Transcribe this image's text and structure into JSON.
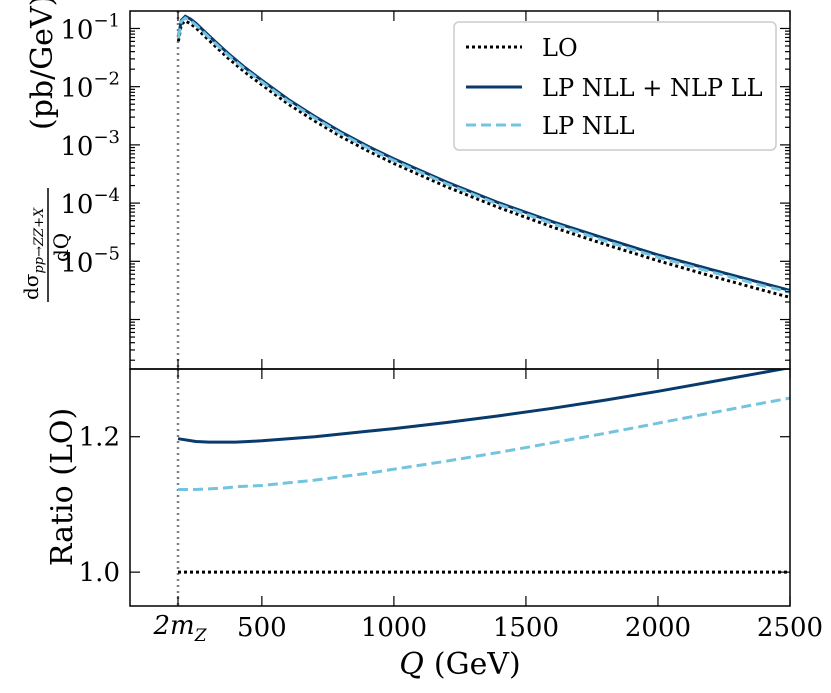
{
  "chart_data": {
    "type": "line",
    "x_unit": "GeV",
    "threshold_marker": {
      "x": 182.4,
      "label_main": "2m",
      "label_sub": "Z"
    },
    "x_ticks": [
      500,
      1000,
      1500,
      2000,
      2500
    ],
    "xlim": [
      0,
      2500
    ],
    "xlabel": {
      "var": "Q",
      "unit": "(GeV)"
    },
    "legend": {
      "position": "top-right",
      "entries": [
        "LO",
        "LP NLL + NLP LL",
        "LP NLL"
      ]
    },
    "colors": {
      "LO": "#000000",
      "LP NLL + NLP LL": "#083a6b",
      "LP NLL": "#74c4e0",
      "threshold": "#808080"
    },
    "top_panel": {
      "yscale": "log",
      "ylim_log10": [
        -6.85,
        -0.7
      ],
      "y_ticks": [
        {
          "base": "10",
          "exp": "−1",
          "log10": -1
        },
        {
          "base": "10",
          "exp": "−2",
          "log10": -2
        },
        {
          "base": "10",
          "exp": "−3",
          "log10": -3
        },
        {
          "base": "10",
          "exp": "−4",
          "log10": -4
        },
        {
          "base": "10",
          "exp": "−5",
          "log10": -5
        }
      ],
      "ylabel_frac_num": "dσ",
      "ylabel_frac_sub": "pp→ZZ+X",
      "ylabel_frac_den": "dQ",
      "ylabel_unit": "(pb/GeV)",
      "x": [
        184,
        195,
        210,
        230,
        250,
        280,
        320,
        370,
        430,
        500,
        600,
        700,
        800,
        900,
        1000,
        1200,
        1400,
        1600,
        1800,
        2000,
        2200,
        2400,
        2500
      ],
      "series": [
        {
          "name": "LO",
          "log10_values": [
            -1.22,
            -0.93,
            -0.87,
            -0.92,
            -0.99,
            -1.12,
            -1.29,
            -1.5,
            -1.73,
            -1.97,
            -2.3,
            -2.59,
            -2.86,
            -3.1,
            -3.32,
            -3.72,
            -4.08,
            -4.41,
            -4.71,
            -4.99,
            -5.25,
            -5.5,
            -5.62
          ]
        },
        {
          "name": "LP NLL + NLP LL",
          "log10_values": [
            -1.14,
            -0.86,
            -0.79,
            -0.84,
            -0.91,
            -1.04,
            -1.21,
            -1.42,
            -1.65,
            -1.89,
            -2.22,
            -2.51,
            -2.78,
            -3.02,
            -3.24,
            -3.64,
            -4.0,
            -4.32,
            -4.61,
            -4.89,
            -5.14,
            -5.38,
            -5.5
          ]
        },
        {
          "name": "LP NLL",
          "log10_values": [
            -1.17,
            -0.88,
            -0.82,
            -0.87,
            -0.94,
            -1.07,
            -1.24,
            -1.45,
            -1.68,
            -1.92,
            -2.25,
            -2.54,
            -2.81,
            -3.05,
            -3.27,
            -3.67,
            -4.03,
            -4.35,
            -4.65,
            -4.93,
            -5.18,
            -5.42,
            -5.53
          ]
        }
      ]
    },
    "bottom_panel": {
      "ylabel": "Ratio (LO)",
      "ylim": [
        0.95,
        1.3
      ],
      "y_ticks": [
        "1.0",
        "1.2"
      ],
      "y_tick_values": [
        1.0,
        1.2
      ],
      "x": [
        182.4,
        250,
        300,
        350,
        400,
        450,
        500,
        600,
        700,
        800,
        900,
        1000,
        1200,
        1400,
        1600,
        1800,
        2000,
        2200,
        2400,
        2500
      ],
      "series": [
        {
          "name": "LO",
          "values": [
            1.0,
            1.0,
            1.0,
            1.0,
            1.0,
            1.0,
            1.0,
            1.0,
            1.0,
            1.0,
            1.0,
            1.0,
            1.0,
            1.0,
            1.0,
            1.0,
            1.0,
            1.0,
            1.0,
            1.0
          ]
        },
        {
          "name": "LP NLL + NLP LL",
          "values": [
            1.197,
            1.193,
            1.192,
            1.192,
            1.192,
            1.193,
            1.194,
            1.197,
            1.2,
            1.204,
            1.208,
            1.212,
            1.221,
            1.231,
            1.242,
            1.254,
            1.267,
            1.281,
            1.295,
            1.302
          ]
        },
        {
          "name": "LP NLL",
          "values": [
            1.122,
            1.122,
            1.123,
            1.124,
            1.126,
            1.127,
            1.128,
            1.132,
            1.136,
            1.141,
            1.146,
            1.152,
            1.164,
            1.177,
            1.191,
            1.205,
            1.22,
            1.235,
            1.25,
            1.257
          ]
        }
      ]
    }
  }
}
